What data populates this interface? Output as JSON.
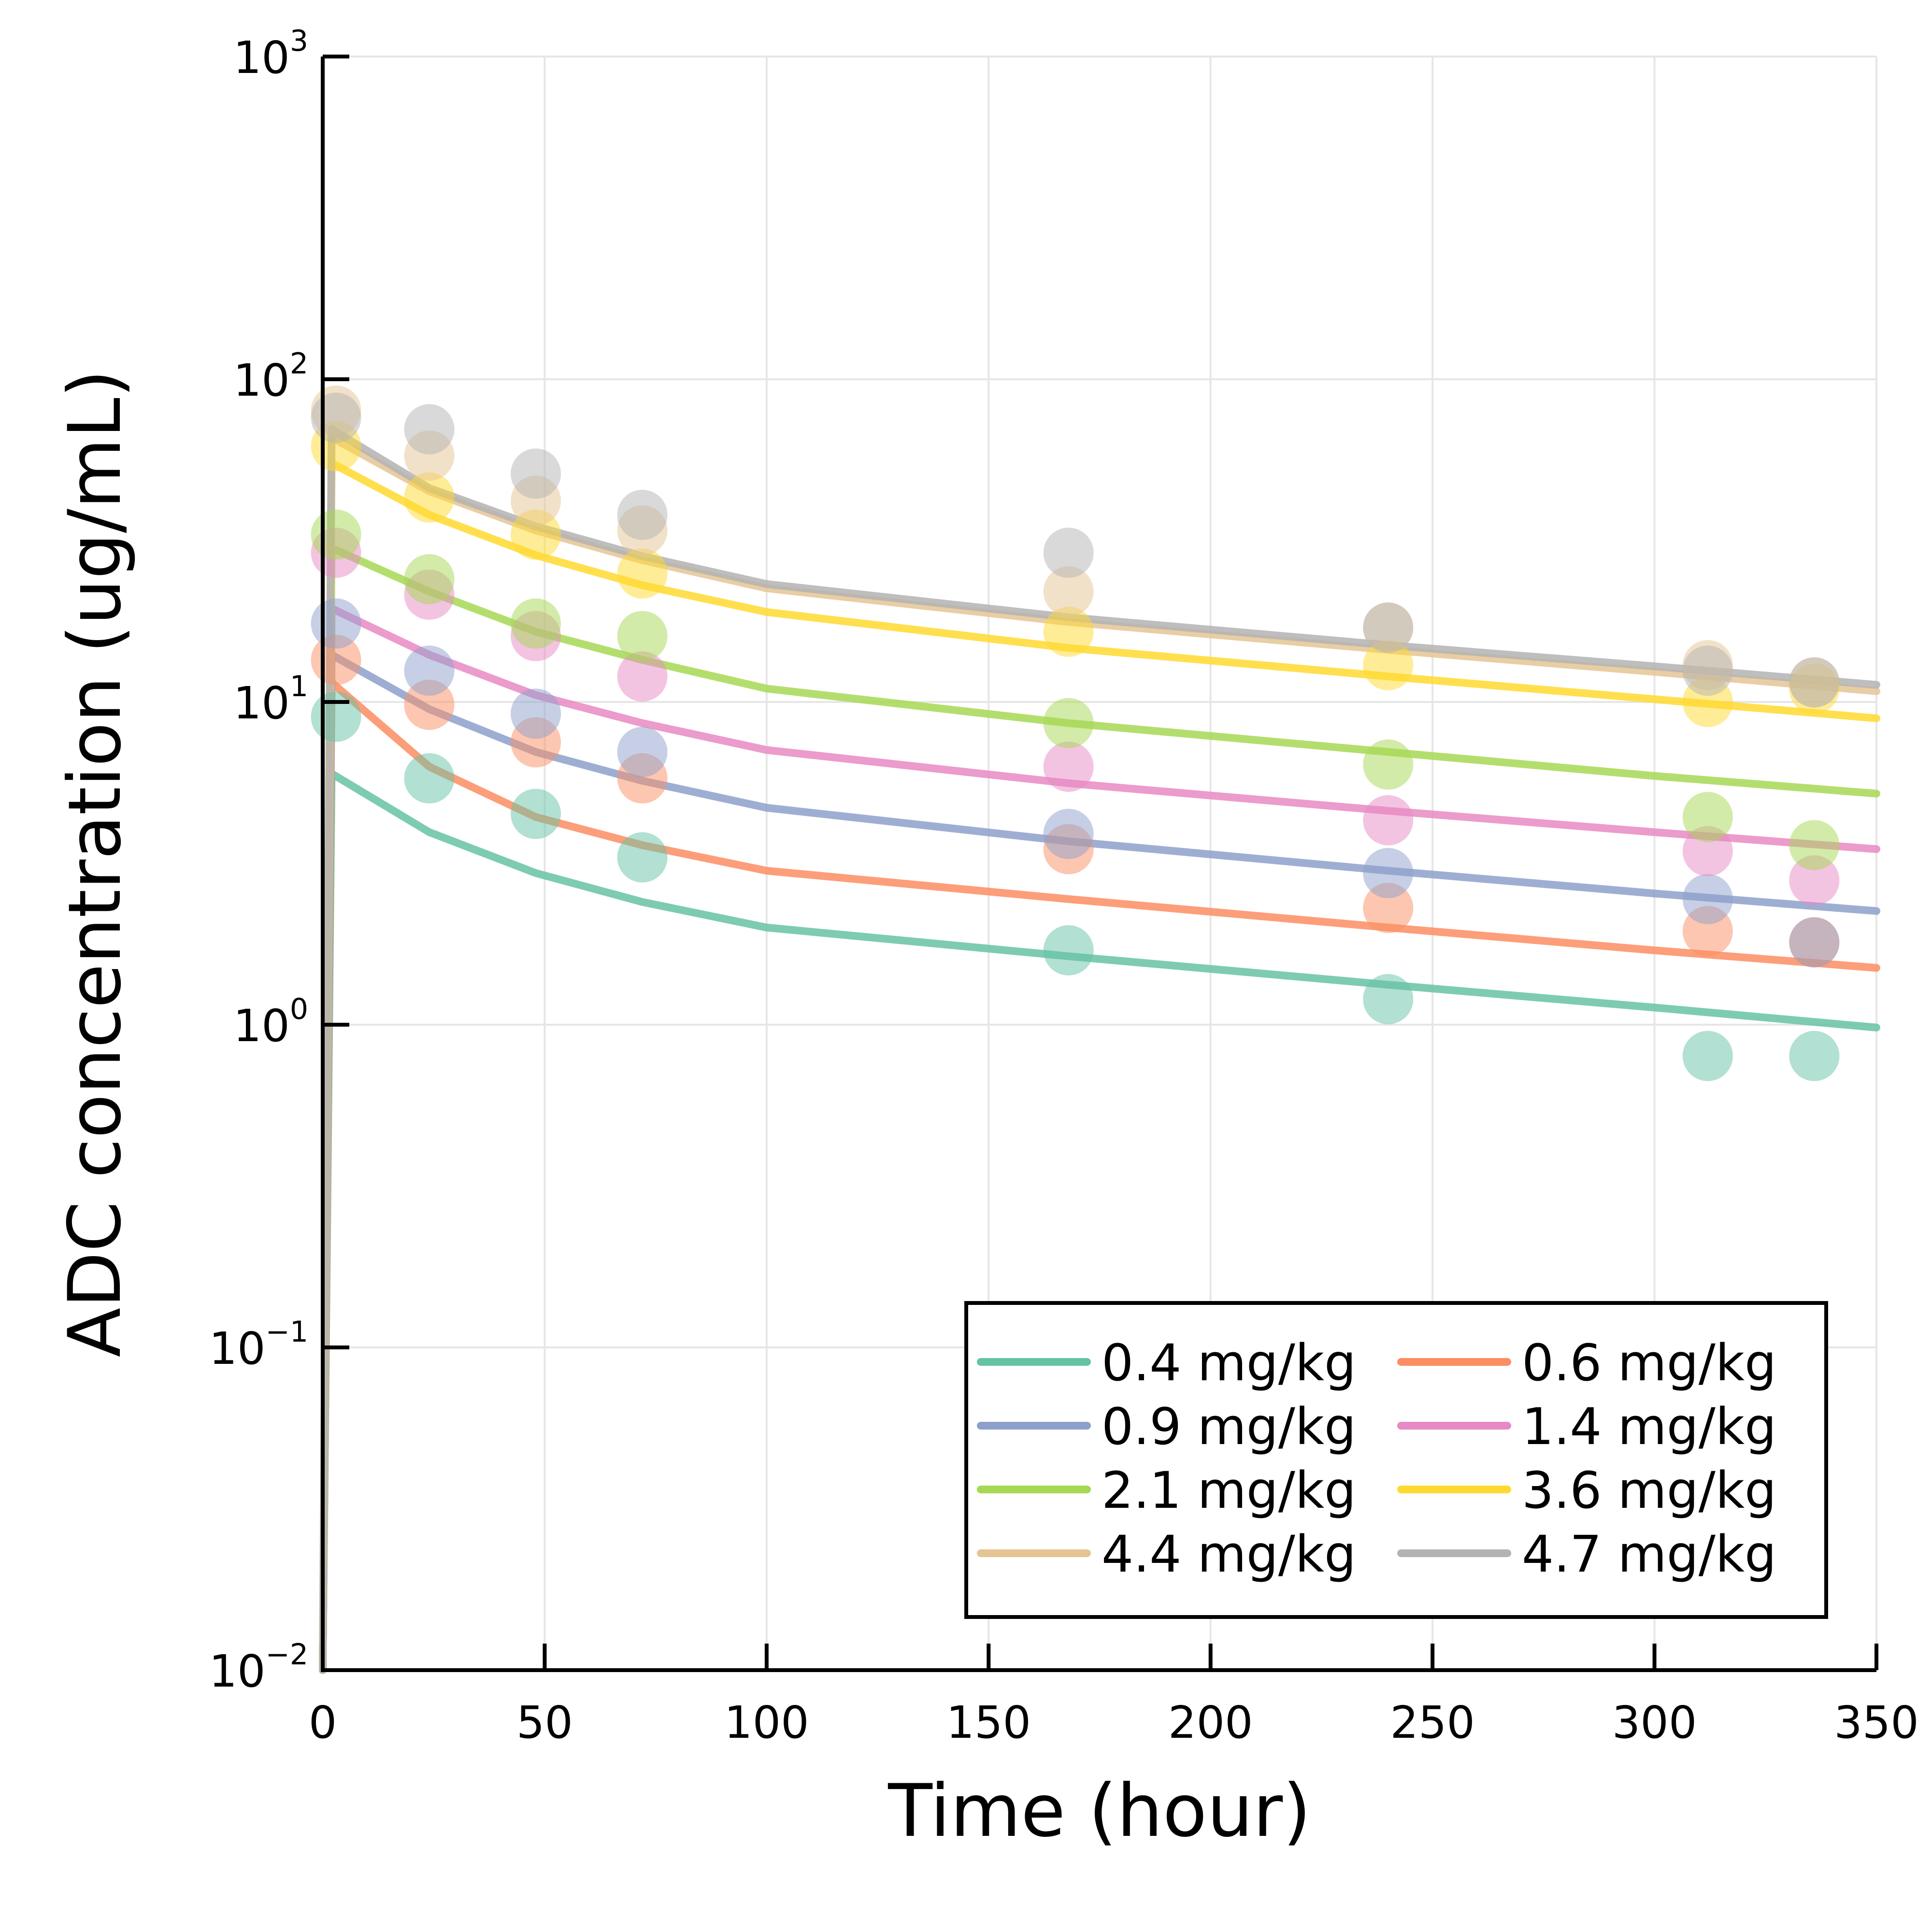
{
  "chart_data": {
    "type": "scatter",
    "xlabel": "Time (hour)",
    "ylabel": "ADC concentration (ug/mL)",
    "x_scale": "linear",
    "y_scale": "log",
    "xlim": [
      0,
      350
    ],
    "ylim": [
      0.01,
      1000
    ],
    "x_ticks": [
      0,
      50,
      100,
      150,
      200,
      250,
      300,
      350
    ],
    "x_tick_labels": [
      "0",
      "50",
      "100",
      "150",
      "200",
      "250",
      "300",
      "350"
    ],
    "y_ticks": [
      0.01,
      0.1,
      1,
      10,
      100,
      1000
    ],
    "y_tick_labels": [
      {
        "base": "10",
        "exp": "−2"
      },
      {
        "base": "10",
        "exp": "−1"
      },
      {
        "base": "10",
        "exp": "0"
      },
      {
        "base": "10",
        "exp": "1"
      },
      {
        "base": "10",
        "exp": "2"
      },
      {
        "base": "10",
        "exp": "3"
      }
    ],
    "grid": true,
    "legend_position": "bottom-right",
    "legend_columns": 2,
    "series": [
      {
        "name": "0.4 mg/kg",
        "color": "#66c2a5",
        "line": {
          "x": [
            0,
            2,
            24,
            48,
            72,
            100,
            168,
            240,
            300,
            350
          ],
          "y": [
            0.01,
            6.0,
            3.95,
            2.95,
            2.4,
            2.0,
            1.63,
            1.33,
            1.13,
            0.98
          ]
        },
        "points": {
          "x": [
            3,
            24,
            48,
            72,
            168,
            240,
            312,
            336
          ],
          "y": [
            9.0,
            5.8,
            4.5,
            3.3,
            1.7,
            1.2,
            0.8,
            0.8
          ]
        }
      },
      {
        "name": "0.6 mg/kg",
        "color": "#fc8d62",
        "line": {
          "x": [
            0,
            2,
            24,
            48,
            72,
            100,
            168,
            240,
            300,
            350
          ],
          "y": [
            0.01,
            11.5,
            6.3,
            4.4,
            3.6,
            3.0,
            2.45,
            2.0,
            1.7,
            1.5
          ]
        },
        "points": {
          "x": [
            3,
            24,
            48,
            72,
            168,
            240,
            312,
            336
          ],
          "y": [
            13.5,
            9.8,
            7.5,
            5.8,
            3.5,
            2.3,
            1.95,
            1.8
          ]
        }
      },
      {
        "name": "0.9 mg/kg",
        "color": "#8da0cb",
        "line": {
          "x": [
            0,
            2,
            24,
            48,
            72,
            100,
            168,
            240,
            300,
            350
          ],
          "y": [
            0.01,
            14.0,
            9.5,
            7.0,
            5.7,
            4.7,
            3.7,
            3.0,
            2.55,
            2.25
          ]
        },
        "points": {
          "x": [
            3,
            24,
            48,
            72,
            168,
            240,
            312,
            336
          ],
          "y": [
            17.5,
            12.5,
            9.2,
            7.0,
            3.9,
            2.95,
            2.45,
            1.8
          ]
        }
      },
      {
        "name": "1.4 mg/kg",
        "color": "#e78ac3",
        "line": {
          "x": [
            0,
            2,
            24,
            48,
            72,
            100,
            168,
            240,
            300,
            350
          ],
          "y": [
            0.01,
            19.5,
            14.0,
            10.5,
            8.6,
            7.1,
            5.6,
            4.6,
            3.95,
            3.5
          ]
        },
        "points": {
          "x": [
            3,
            24,
            48,
            72,
            168,
            240,
            312,
            336
          ],
          "y": [
            29.0,
            21.5,
            16.0,
            12.0,
            6.3,
            4.3,
            3.45,
            2.8
          ]
        }
      },
      {
        "name": "2.1 mg/kg",
        "color": "#a6d854",
        "line": {
          "x": [
            0,
            2,
            24,
            48,
            72,
            100,
            168,
            240,
            300,
            350
          ],
          "y": [
            0.01,
            30.0,
            22.0,
            16.5,
            13.5,
            11.0,
            8.6,
            7.0,
            5.9,
            5.2
          ]
        },
        "points": {
          "x": [
            3,
            24,
            48,
            72,
            168,
            240,
            312,
            336
          ],
          "y": [
            33.0,
            24.0,
            17.5,
            16.0,
            8.6,
            6.4,
            4.4,
            3.6
          ]
        }
      },
      {
        "name": "3.6 mg/kg",
        "color": "#ffd92f",
        "line": {
          "x": [
            0,
            2,
            24,
            48,
            72,
            100,
            168,
            240,
            300,
            350
          ],
          "y": [
            0.01,
            55.0,
            38.0,
            28.5,
            23.0,
            19.0,
            14.7,
            12.0,
            10.2,
            8.9
          ]
        },
        "points": {
          "x": [
            3,
            24,
            48,
            72,
            168,
            240,
            312,
            336
          ],
          "y": [
            62.0,
            43.0,
            33.0,
            25.0,
            16.5,
            13.0,
            10.0,
            11.0
          ]
        }
      },
      {
        "name": "4.4 mg/kg",
        "color": "#e5c494",
        "line": {
          "x": [
            0,
            2,
            24,
            48,
            72,
            100,
            168,
            240,
            300,
            350
          ],
          "y": [
            0.01,
            66.0,
            45.0,
            34.0,
            27.5,
            22.5,
            17.7,
            14.5,
            12.4,
            10.8
          ]
        },
        "points": {
          "x": [
            3,
            24,
            48,
            72,
            168,
            240,
            312,
            336
          ],
          "y": [
            80.0,
            58.0,
            42.0,
            34.0,
            22.0,
            17.0,
            13.0,
            11.5
          ]
        }
      },
      {
        "name": "4.7 mg/kg",
        "color": "#b3b3b3",
        "line": {
          "x": [
            0,
            2,
            24,
            48,
            72,
            100,
            168,
            240,
            300,
            350
          ],
          "y": [
            0.01,
            70.0,
            46.0,
            35.0,
            28.3,
            23.2,
            18.3,
            15.0,
            12.9,
            11.3
          ]
        },
        "points": {
          "x": [
            3,
            24,
            48,
            72,
            168,
            240,
            312,
            336
          ],
          "y": [
            76.0,
            70.0,
            51.0,
            38.0,
            29.0,
            17.0,
            12.5,
            11.5
          ]
        }
      }
    ]
  }
}
